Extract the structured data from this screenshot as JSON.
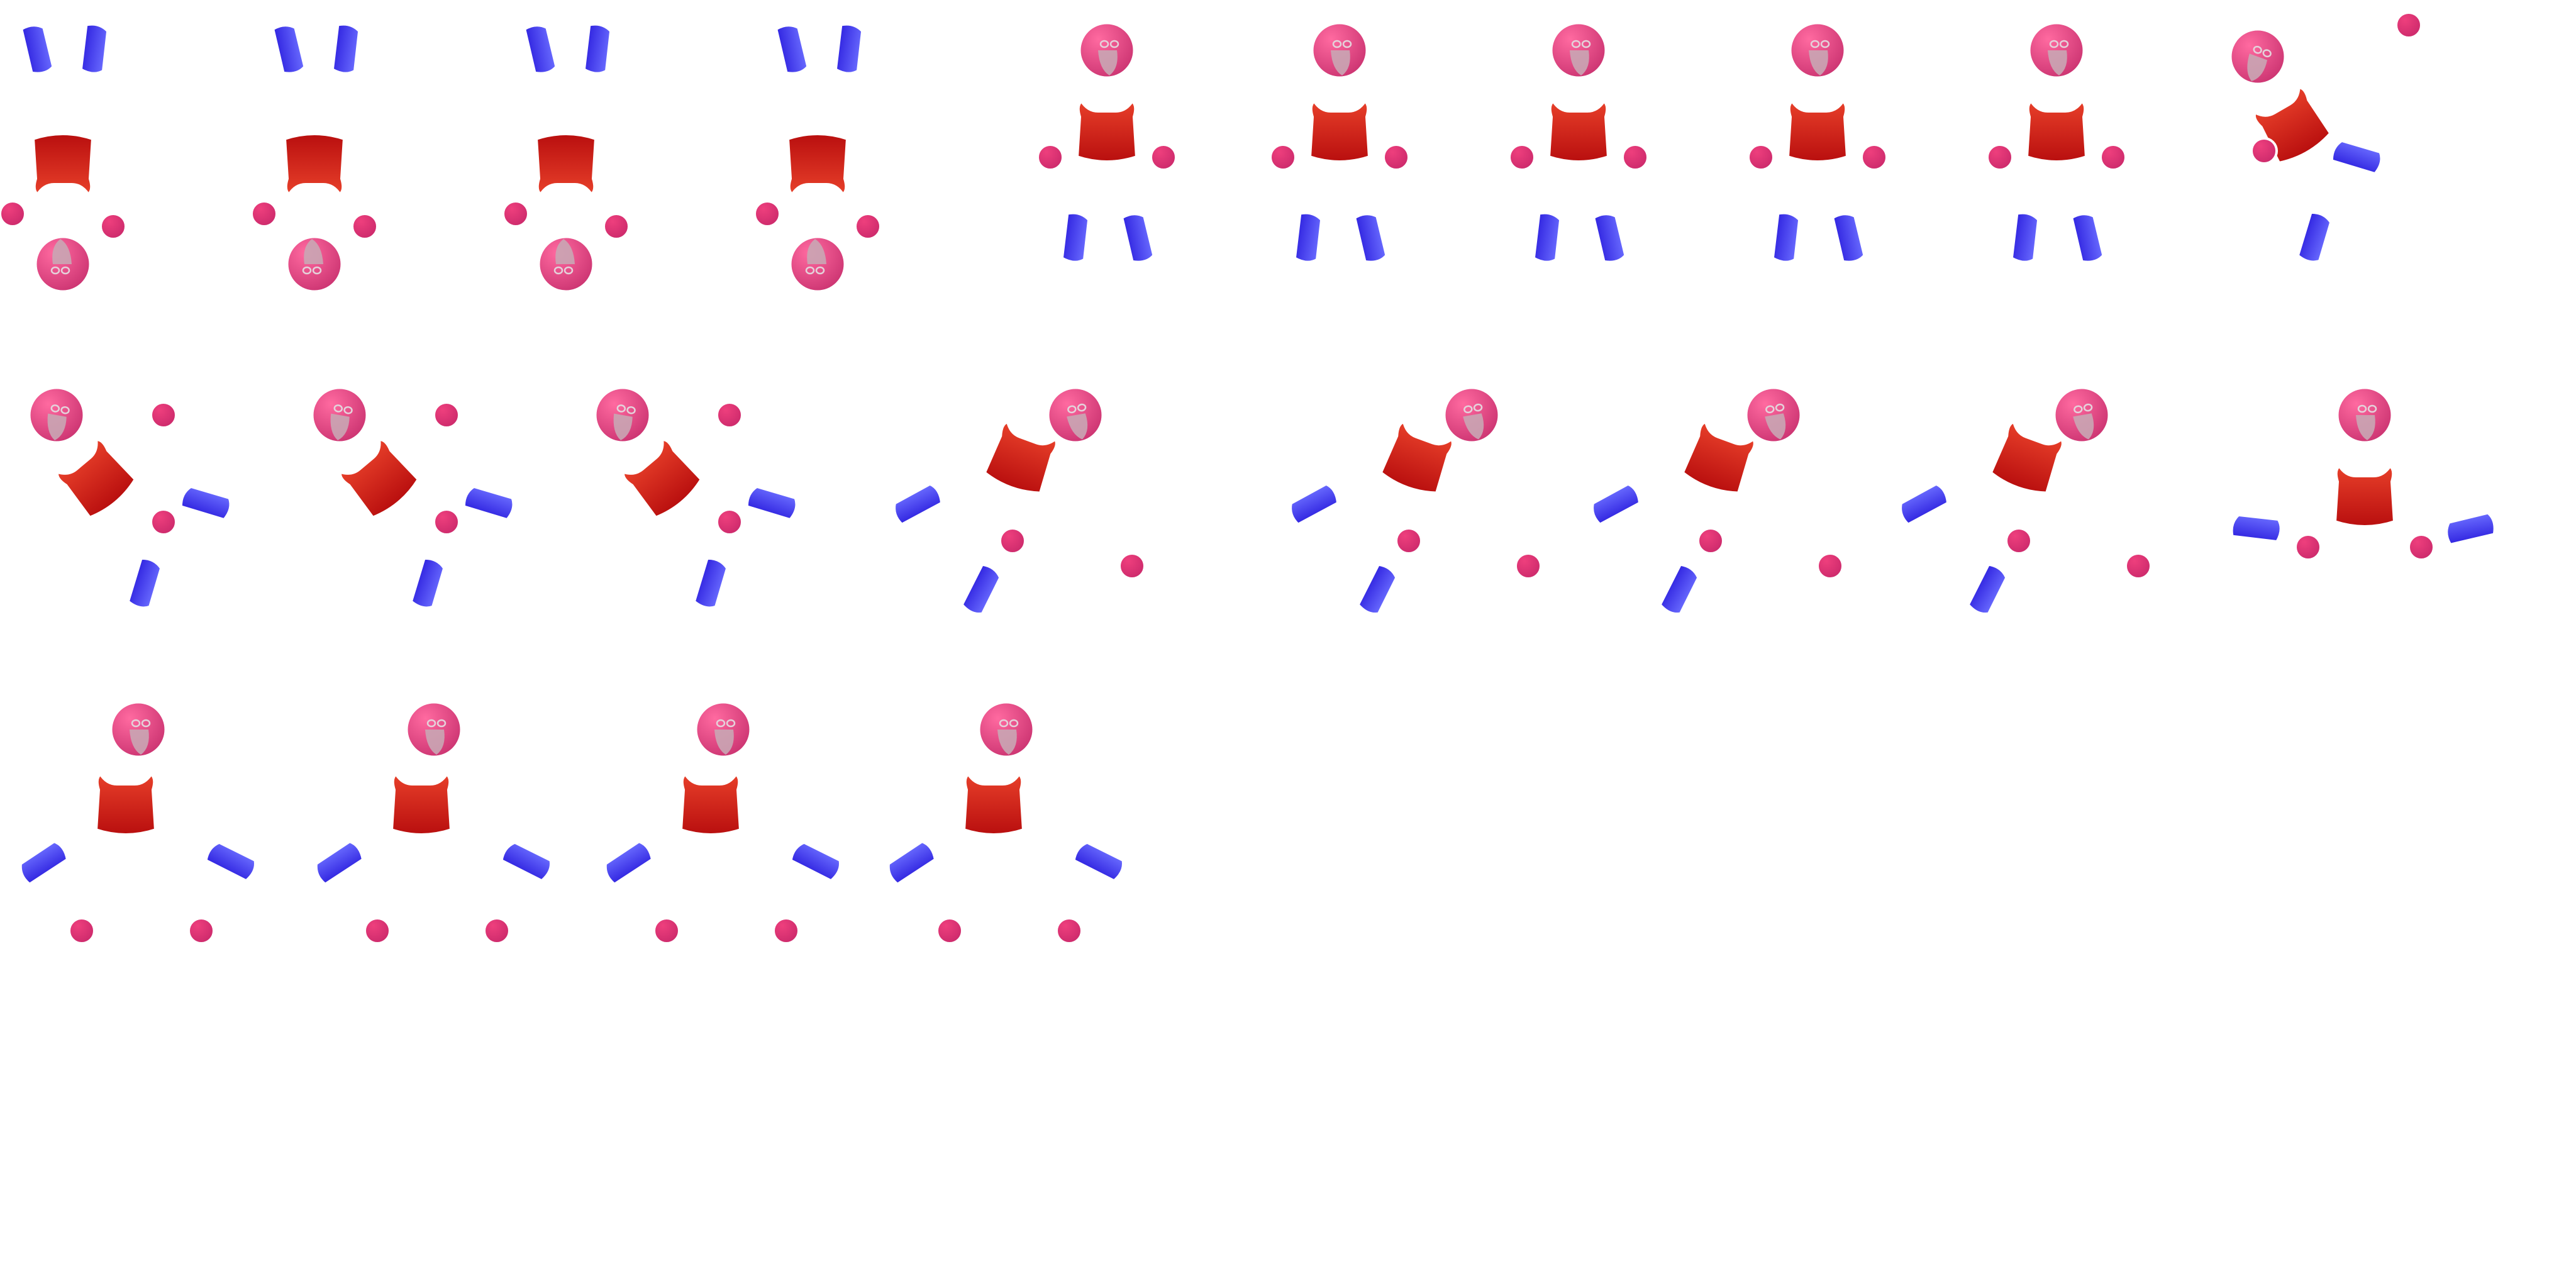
{
  "sprite_sheet": {
    "subject": "puppet",
    "colors": {
      "head_light": "#ff6aa0",
      "head_dark": "#c8306e",
      "face": "#c9a6b4",
      "face_stroke": "#e4d2da",
      "torso_light": "#e8402a",
      "torso_dark": "#b80e0e",
      "limb_light": "#6a6cff",
      "limb_dark": "#3024e0",
      "hand": "#ee3f7d",
      "hand_dark": "#c9286a",
      "outline": "#ffffff"
    },
    "rows": [
      {
        "name": "upside-down",
        "frames": [
          {
            "pose": "inverted"
          },
          {
            "pose": "inverted"
          },
          {
            "pose": "inverted"
          },
          {
            "pose": "inverted"
          }
        ]
      },
      {
        "name": "standing",
        "frames": [
          {
            "pose": "stand"
          },
          {
            "pose": "stand"
          },
          {
            "pose": "stand"
          },
          {
            "pose": "stand"
          },
          {
            "pose": "stand"
          },
          {
            "pose": "tilt"
          }
        ]
      },
      {
        "name": "tumble",
        "frames": [
          {
            "pose": "fall-right"
          },
          {
            "pose": "fall-right"
          },
          {
            "pose": "fall-right"
          },
          {
            "pose": "dive"
          },
          {
            "pose": "dive"
          },
          {
            "pose": "dive"
          },
          {
            "pose": "dive"
          },
          {
            "pose": "splits"
          }
        ]
      },
      {
        "name": "sitting",
        "frames": [
          {
            "pose": "sit"
          },
          {
            "pose": "sit"
          },
          {
            "pose": "sit"
          },
          {
            "pose": "sit"
          }
        ]
      }
    ]
  }
}
